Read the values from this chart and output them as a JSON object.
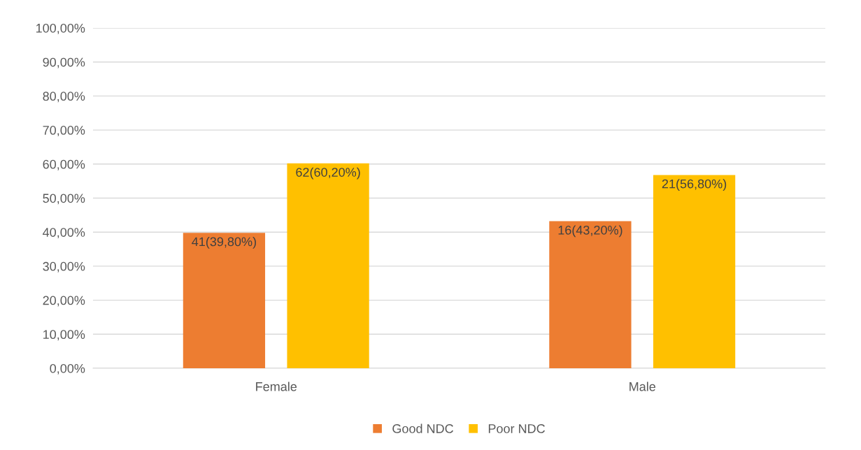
{
  "chart_data": {
    "type": "bar",
    "categories": [
      "Female",
      "Male"
    ],
    "series": [
      {
        "name": "Good NDC",
        "color": "#ed7d31",
        "values": [
          39.8,
          43.2
        ],
        "value_labels": [
          "41(39,80%)",
          "16(43,20%)"
        ]
      },
      {
        "name": "Poor NDC",
        "color": "#ffc000",
        "values": [
          60.2,
          56.8
        ],
        "value_labels": [
          "62(60,20%)",
          "21(56,80%)"
        ]
      }
    ],
    "ylim": [
      0,
      100
    ],
    "yticks": [
      {
        "value": 0,
        "label": "0,00%"
      },
      {
        "value": 10,
        "label": "10,00%"
      },
      {
        "value": 20,
        "label": "20,00%"
      },
      {
        "value": 30,
        "label": "30,00%"
      },
      {
        "value": 40,
        "label": "40,00%"
      },
      {
        "value": 50,
        "label": "50,00%"
      },
      {
        "value": 60,
        "label": "60,00%"
      },
      {
        "value": 70,
        "label": "70,00%"
      },
      {
        "value": 80,
        "label": "80,00%"
      },
      {
        "value": 90,
        "label": "90,00%"
      },
      {
        "value": 100,
        "label": "100,00%"
      }
    ],
    "grid": "y",
    "legend": "bottom"
  }
}
